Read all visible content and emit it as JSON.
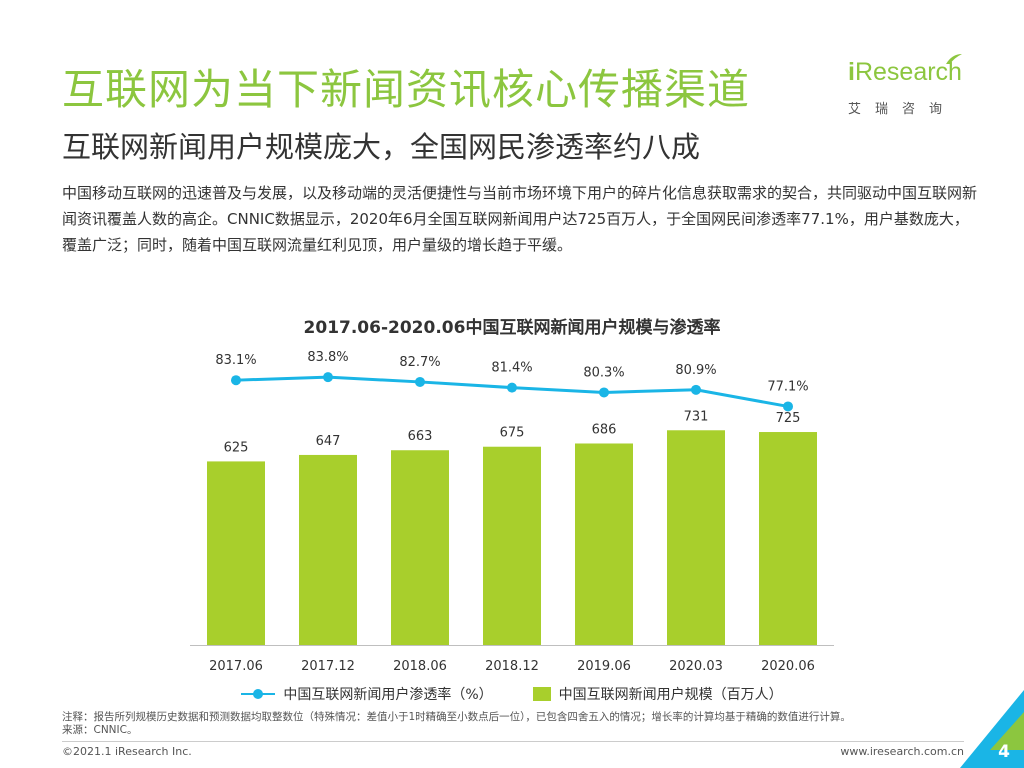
{
  "header": {
    "title": "互联网为当下新闻资讯核心传播渠道",
    "subtitle": "互联网新闻用户规模庞大，全国网民渗透率约八成"
  },
  "logo": {
    "i_mark": "i",
    "brand": "Research",
    "chinese": "艾瑞咨询"
  },
  "intro": "中国移动互联网的迅速普及与发展，以及移动端的灵活便捷性与当前市场环境下用户的碎片化信息获取需求的契合，共同驱动中国互联网新闻资讯覆盖人数的高企。CNNIC数据显示，2020年6月全国互联网新闻用户达725百万人，于全国网民间渗透率77.1%，用户基数庞大，覆盖广泛；同时，随着中国互联网流量红利见顶，用户量级的增长趋于平缓。",
  "chart_data": {
    "type": "bar",
    "title": "2017.06-2020.06中国互联网新闻用户规模与渗透率",
    "categories": [
      "2017.06",
      "2017.12",
      "2018.06",
      "2018.12",
      "2019.06",
      "2020.03",
      "2020.06"
    ],
    "series": [
      {
        "name": "中国互联网新闻用户规模（百万人）",
        "type": "bar",
        "values": [
          625,
          647,
          663,
          675,
          686,
          731,
          725
        ],
        "labels": [
          "625",
          "647",
          "663",
          "675",
          "686",
          "731",
          "725"
        ],
        "color": "#a8cf2c"
      },
      {
        "name": "中国互联网新闻用户渗透率（%）",
        "type": "line",
        "values": [
          83.1,
          83.8,
          82.7,
          81.4,
          80.3,
          80.9,
          77.1
        ],
        "labels": [
          "83.1%",
          "83.8%",
          "82.7%",
          "81.4%",
          "80.3%",
          "80.9%",
          "77.1%"
        ],
        "color": "#1ab5e6"
      }
    ],
    "bar_axis_range": [
      0,
      800
    ],
    "line_axis_range": [
      50,
      90
    ],
    "grid": false,
    "legend": "bottom"
  },
  "legend": {
    "line_label": "中国互联网新闻用户渗透率（%）",
    "bar_label": "中国互联网新闻用户规模（百万人）"
  },
  "footer": {
    "note": "注释：报告所列规模历史数据和预测数据均取整数位（特殊情况：差值小于1时精确至小数点后一位），已包含四舍五入的情况；增长率的计算均基于精确的数值进行计算。",
    "source": "来源：CNNIC。",
    "copyright": "©2021.1 iResearch Inc.",
    "website": "www.iresearch.com.cn",
    "page": "4"
  },
  "colors": {
    "title_green": "#8cc63f",
    "bar_green": "#a8cf2c",
    "line_blue": "#1ab5e6",
    "corner_green": "#8cc63f",
    "corner_blue": "#1ab5e6"
  }
}
